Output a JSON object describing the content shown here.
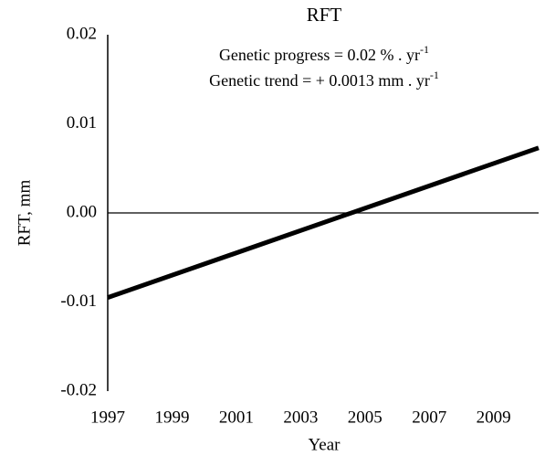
{
  "chart_data": {
    "type": "line",
    "title": "RFT",
    "annotations": [
      {
        "text": "Genetic progress = 0.02 % . yr",
        "sup": "-1"
      },
      {
        "text": "Genetic trend = + 0.0013 mm . yr",
        "sup": "-1"
      }
    ],
    "xlabel": "Year",
    "ylabel": "RFT, mm",
    "x": [
      1997,
      2010.4
    ],
    "series": [
      {
        "color": "#000000",
        "values": [
          -0.0095,
          0.0073
        ]
      }
    ],
    "xlim": [
      1997,
      2010.4
    ],
    "xticks": [
      1997,
      1999,
      2001,
      2003,
      2005,
      2007,
      2009
    ],
    "ylim": [
      -0.02,
      0.02
    ],
    "yticks": [
      0.02,
      0.01,
      {
        "value": 0,
        "label": "0.00"
      },
      -0.01,
      -0.02
    ]
  }
}
